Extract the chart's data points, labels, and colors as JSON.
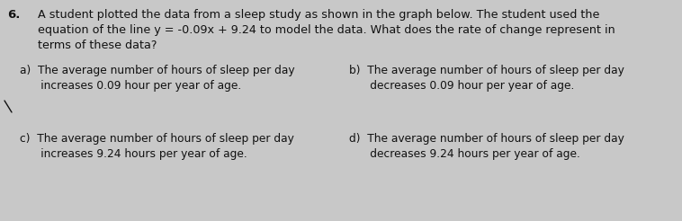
{
  "background_color": "#c8c8c8",
  "text_color": "#111111",
  "question_number": "6.",
  "q_line1": "A student plotted the data from a sleep study as shown in the graph below. The student used the",
  "q_line2": "equation of the line y = -0.09x + 9.24 to model the data. What does the rate of change represent in",
  "q_line3": "terms of these data?",
  "a_line1": "a)  The average number of hours of sleep per day",
  "a_line2": "      increases 0.09 hour per year of age.",
  "b_line1": "b)  The average number of hours of sleep per day",
  "b_line2": "      decreases 0.09 hour per year of age.",
  "c_line1": "c)  The average number of hours of sleep per day",
  "c_line2": "      increases 9.24 hours per year of age.",
  "d_line1": "d)  The average number of hours of sleep per day",
  "d_line2": "      decreases 9.24 hours per year of age.",
  "fs_q": 9.2,
  "fs_o": 8.8,
  "fs_num": 9.5
}
